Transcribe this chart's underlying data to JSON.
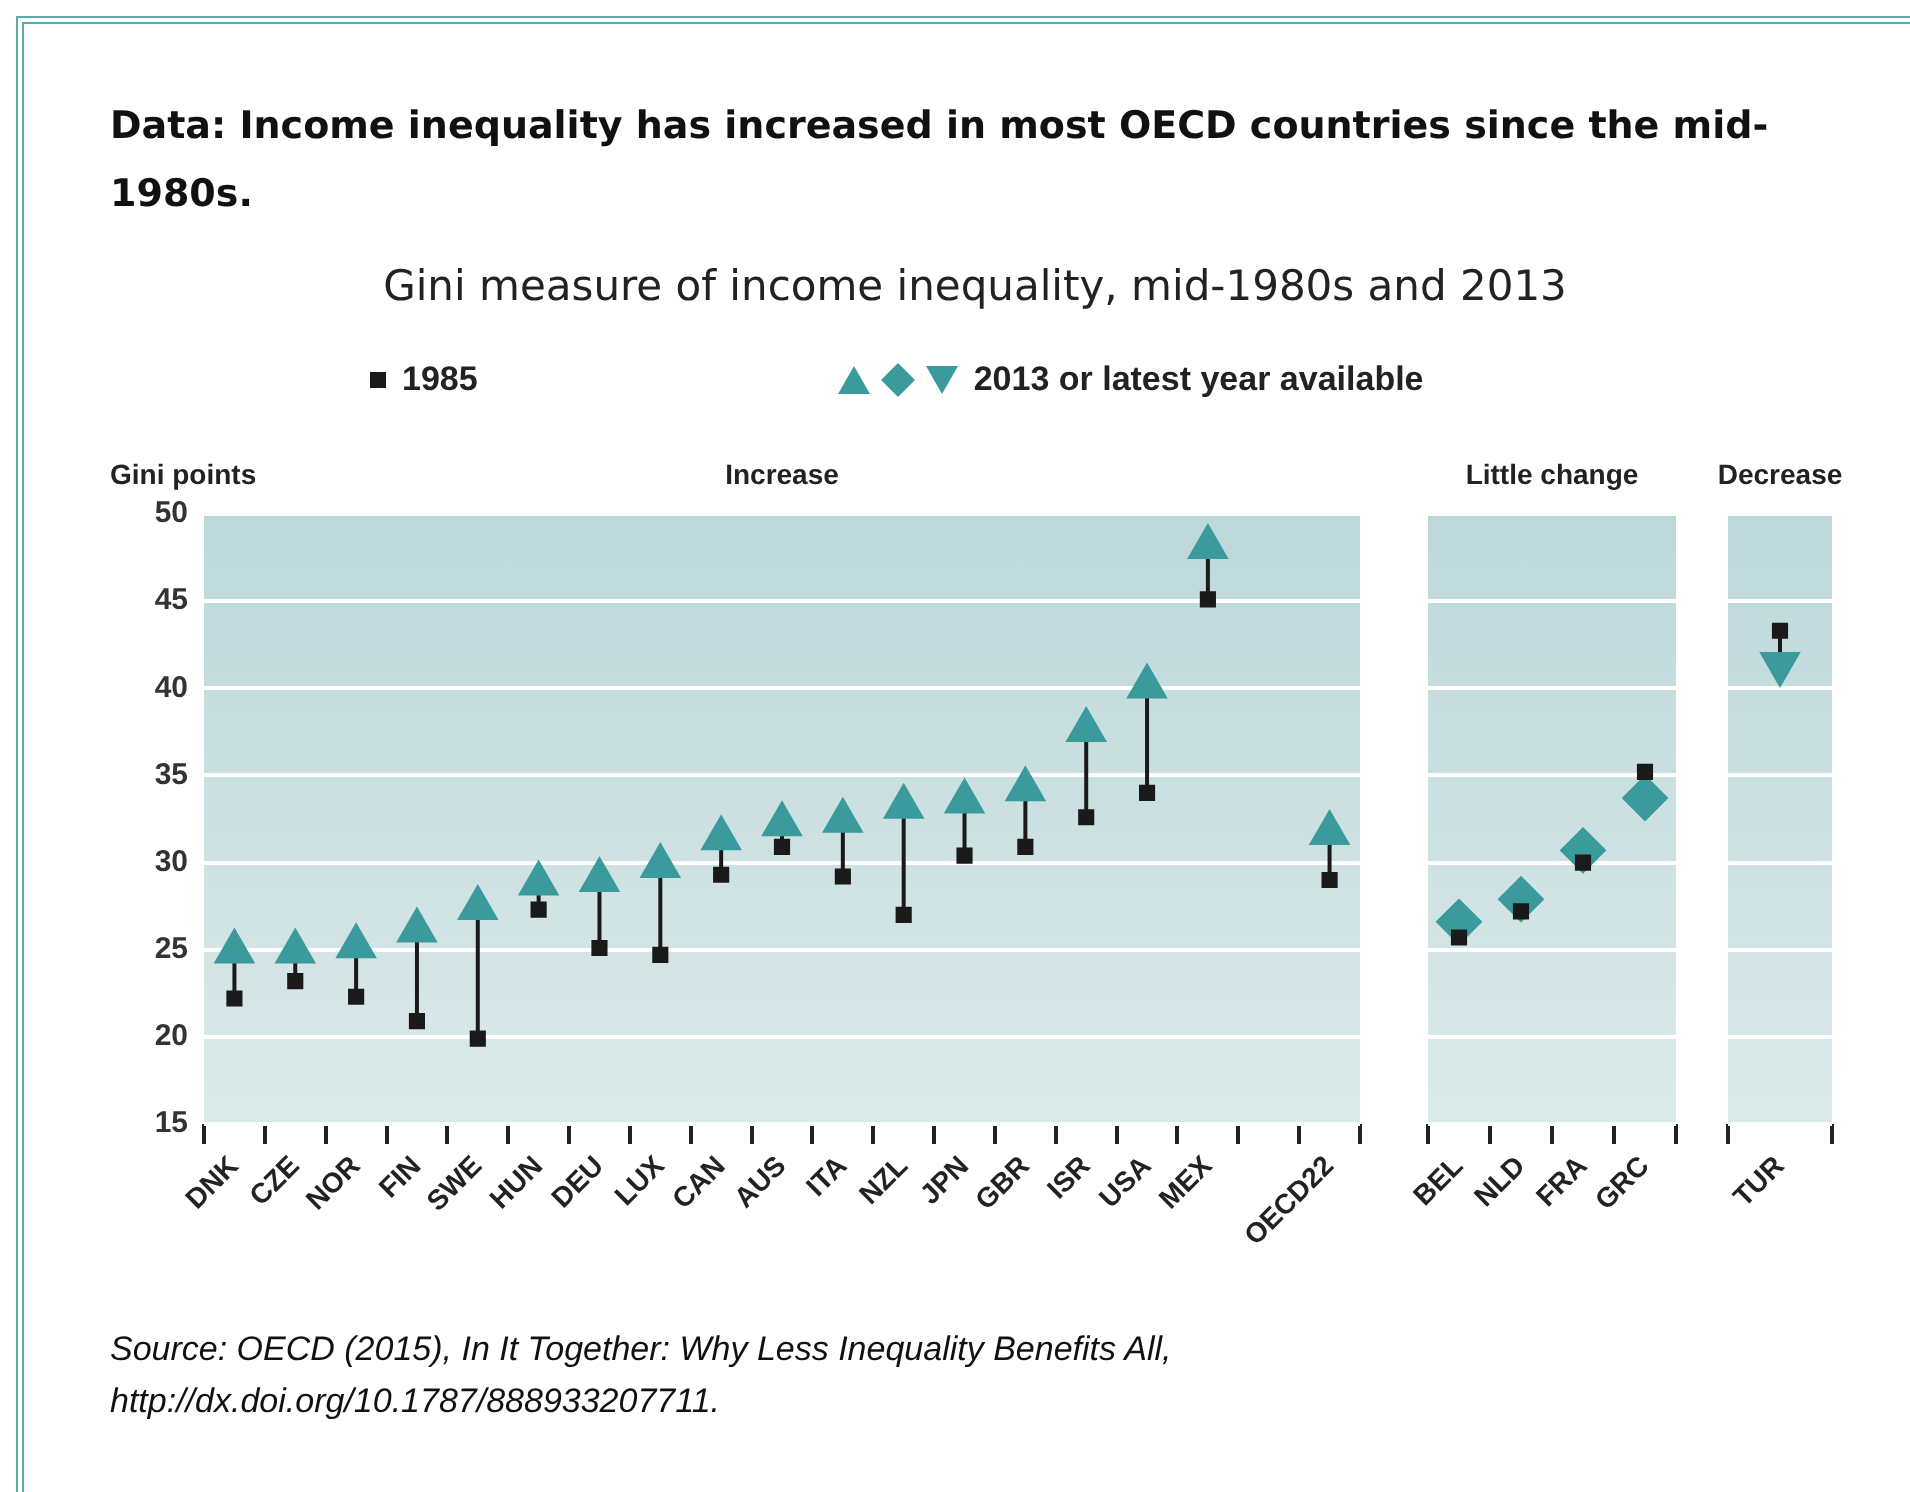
{
  "chart_data": [
    {
      "type": "other",
      "title": "Data: Income inequality has increased in most OECD countries since the mid-1980s.",
      "subtitle": "Gini measure of income inequality, mid-1980s and 2013",
      "annotations": [
        "Source:  OECD (2015), In It Together: Why Less Inequality Benefits All, http://dx.doi.org/10.1787/888933207711."
      ]
    },
    {
      "type": "scatter",
      "title": "Increase",
      "ylabel": "Gini points",
      "categories": [
        "DNK",
        "CZE",
        "NOR",
        "FIN",
        "SWE",
        "HUN",
        "DEU",
        "LUX",
        "CAN",
        "AUS",
        "ITA",
        "NZL",
        "JPN",
        "GBR",
        "ISR",
        "USA",
        "MEX",
        null,
        "OECD22"
      ],
      "series": [
        {
          "name": "1985",
          "color": "#1a1a1a",
          "marker": "square",
          "values": [
            22.2,
            23.2,
            22.3,
            20.9,
            19.9,
            27.3,
            25.1,
            24.7,
            29.3,
            30.9,
            29.2,
            27.0,
            30.4,
            30.9,
            32.6,
            34.0,
            45.1,
            null,
            29.0
          ]
        },
        {
          "name": "2013 or latest year available",
          "color": "#3a9a9c",
          "marker": "triangle",
          "values": [
            24.9,
            24.9,
            25.2,
            26.1,
            27.4,
            28.8,
            29.0,
            29.8,
            31.4,
            32.2,
            32.4,
            33.2,
            33.5,
            34.2,
            37.6,
            40.1,
            48.1,
            null,
            31.7
          ]
        }
      ],
      "ylim": [
        15,
        50
      ],
      "yticks": [
        15,
        20,
        25,
        30,
        35,
        40,
        45,
        50
      ],
      "grid": "y",
      "legend": "top"
    },
    {
      "type": "scatter",
      "title": "Little change",
      "categories": [
        "BEL",
        "NLD",
        "FRA",
        "GRC"
      ],
      "series": [
        {
          "color": "#1a1a1a",
          "marker": "square",
          "values": [
            25.7,
            27.2,
            30.0,
            35.2
          ]
        },
        {
          "color": "#3a9a9c",
          "marker": "diamond",
          "values": [
            26.6,
            27.9,
            30.7,
            33.7
          ]
        }
      ],
      "ylim": [
        15,
        50
      ],
      "yticks": [
        15,
        20,
        25,
        30,
        35,
        40,
        45,
        50
      ],
      "grid": "y",
      "tick_labels": "x"
    },
    {
      "type": "scatter",
      "title": "Decrease",
      "categories": [
        "TUR"
      ],
      "series": [
        {
          "color": "#1a1a1a",
          "marker": "square",
          "values": [
            43.3
          ]
        },
        {
          "color": "#3a9a9c",
          "marker": "triangle-down",
          "values": [
            41.4
          ]
        }
      ],
      "ylim": [
        15,
        50
      ],
      "yticks": [
        15,
        20,
        25,
        30,
        35,
        40,
        45,
        50
      ],
      "grid": "y",
      "tick_labels": "x"
    }
  ]
}
